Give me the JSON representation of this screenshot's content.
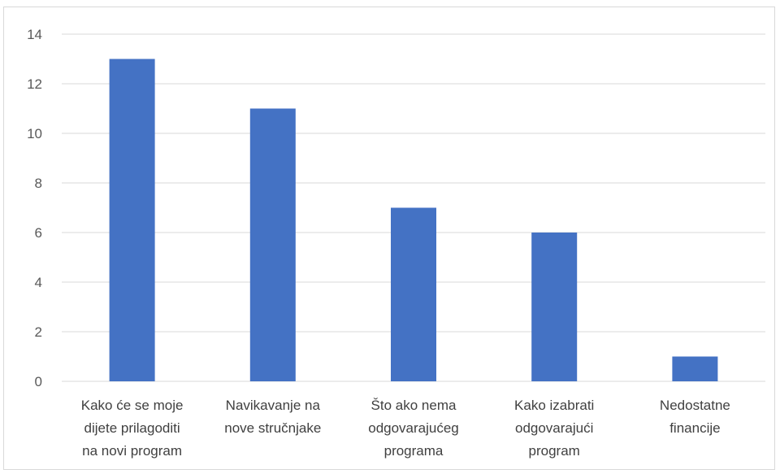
{
  "chart_data": {
    "type": "bar",
    "categories": [
      [
        "Kako će se moje",
        "dijete prilagoditi",
        "na novi program"
      ],
      [
        "Navikavanje na",
        "nove stručnjake"
      ],
      [
        "Što ako nema",
        "odgovarajućeg",
        "programa"
      ],
      [
        "Kako izabrati",
        "odgovarajući",
        "program"
      ],
      [
        "Nedostatne",
        "financije"
      ]
    ],
    "values": [
      13,
      11,
      7,
      6,
      1
    ],
    "ylim": [
      0,
      14
    ],
    "yticks": [
      "0",
      "2",
      "4",
      "6",
      "8",
      "10",
      "12",
      "14"
    ],
    "grid": true,
    "bar_color": "#4472C4",
    "grid_color": "#d9d9d9",
    "title": "",
    "xlabel": "",
    "ylabel": ""
  }
}
